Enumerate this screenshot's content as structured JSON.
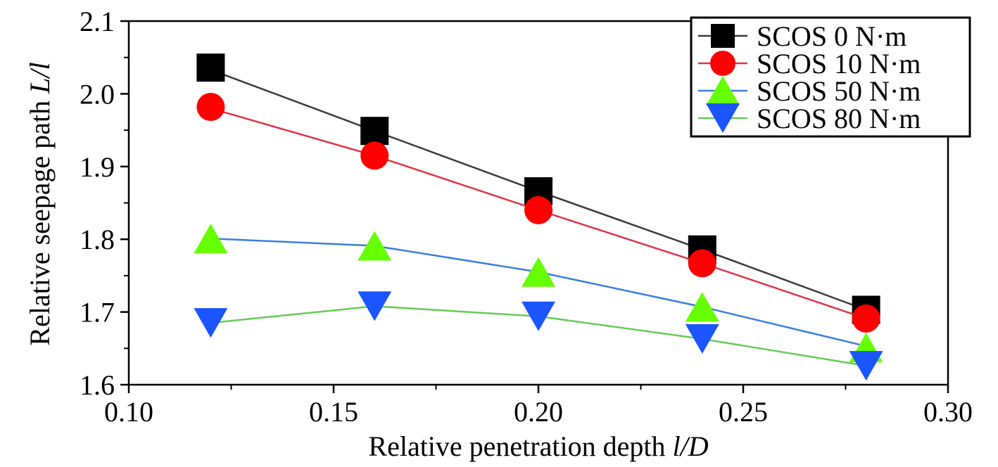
{
  "chart_data": {
    "type": "line",
    "xlabel": "Relative penetration depth ",
    "xlabel_var": "l/D",
    "ylabel": "Relative seepage path ",
    "ylabel_var": "L/l",
    "xlim": [
      0.1,
      0.3
    ],
    "ylim": [
      1.6,
      2.1
    ],
    "x_ticks": [
      "0.10",
      "0.15",
      "0.20",
      "0.25",
      "0.30"
    ],
    "y_ticks": [
      "1.6",
      "1.7",
      "1.8",
      "1.9",
      "2.0",
      "2.1"
    ],
    "legend_position": "top-right",
    "grid": false,
    "series": [
      {
        "name": "SCOS 0 N·m",
        "marker": "square",
        "line_color": "#3a3a3a",
        "marker_color": "#000000",
        "points": [
          {
            "x": 0.12,
            "y": 2.036,
            "line_y": 2.033
          },
          {
            "x": 0.16,
            "y": 1.949,
            "line_y": 1.949
          },
          {
            "x": 0.2,
            "y": 1.866,
            "line_y": 1.866
          },
          {
            "x": 0.24,
            "y": 1.786,
            "line_y": 1.786
          },
          {
            "x": 0.28,
            "y": 1.703,
            "line_y": 1.703
          }
        ]
      },
      {
        "name": "SCOS 10 N·m",
        "marker": "circle",
        "line_color": "#e03545",
        "marker_color": "#ff0000",
        "points": [
          {
            "x": 0.12,
            "y": 1.982,
            "line_y": 1.98
          },
          {
            "x": 0.16,
            "y": 1.915,
            "line_y": 1.915
          },
          {
            "x": 0.2,
            "y": 1.84,
            "line_y": 1.84
          },
          {
            "x": 0.24,
            "y": 1.767,
            "line_y": 1.767
          },
          {
            "x": 0.28,
            "y": 1.691,
            "line_y": 1.691
          }
        ]
      },
      {
        "name": "SCOS 50 N·m",
        "marker": "triangle-up",
        "line_color": "#3a7fe0",
        "marker_color": "#66ff00",
        "points": [
          {
            "x": 0.12,
            "y": 1.801,
            "line_y": 1.801
          },
          {
            "x": 0.16,
            "y": 1.791,
            "line_y": 1.791
          },
          {
            "x": 0.2,
            "y": 1.755,
            "line_y": 1.755
          },
          {
            "x": 0.24,
            "y": 1.707,
            "line_y": 1.707
          },
          {
            "x": 0.28,
            "y": 1.651,
            "line_y": 1.653
          }
        ]
      },
      {
        "name": "SCOS 80 N·m",
        "marker": "triangle-down",
        "line_color": "#66cc55",
        "marker_color": "#1a55ff",
        "points": [
          {
            "x": 0.12,
            "y": 1.685,
            "line_y": 1.685
          },
          {
            "x": 0.16,
            "y": 1.708,
            "line_y": 1.708
          },
          {
            "x": 0.2,
            "y": 1.694,
            "line_y": 1.694
          },
          {
            "x": 0.24,
            "y": 1.663,
            "line_y": 1.663
          },
          {
            "x": 0.28,
            "y": 1.626,
            "line_y": 1.626
          }
        ]
      }
    ]
  }
}
